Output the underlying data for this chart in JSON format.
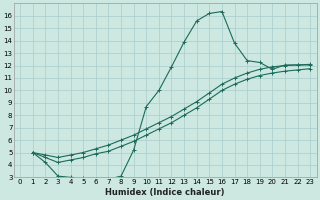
{
  "xlabel": "Humidex (Indice chaleur)",
  "bg_color": "#cce8e0",
  "grid_color": "#aacccc",
  "line_color": "#1a6b5a",
  "xlim": [
    -0.5,
    23.5
  ],
  "ylim": [
    3,
    17
  ],
  "xticks": [
    0,
    1,
    2,
    3,
    4,
    5,
    6,
    7,
    8,
    9,
    10,
    11,
    12,
    13,
    14,
    15,
    16,
    17,
    18,
    19,
    20,
    21,
    22,
    23
  ],
  "yticks": [
    3,
    4,
    5,
    6,
    7,
    8,
    9,
    10,
    11,
    12,
    13,
    14,
    15,
    16
  ],
  "curve1_x": [
    1,
    2,
    3,
    4,
    5,
    6,
    7,
    8,
    9,
    10,
    11,
    12,
    13,
    14,
    15,
    16,
    17,
    18,
    19,
    20,
    21,
    22,
    23
  ],
  "curve1_y": [
    5.0,
    4.2,
    3.1,
    3.0,
    2.95,
    2.85,
    2.85,
    3.1,
    5.2,
    8.7,
    10.0,
    11.9,
    13.9,
    15.6,
    16.2,
    16.35,
    13.8,
    12.4,
    12.25,
    11.7,
    12.05,
    12.05,
    12.05
  ],
  "curve2_x": [
    1,
    2,
    3,
    4,
    5,
    6,
    7,
    8,
    9,
    10,
    11,
    12,
    13,
    14,
    15,
    16,
    17,
    18,
    19,
    20,
    21,
    22,
    23
  ],
  "curve2_y": [
    5.0,
    4.8,
    4.6,
    4.8,
    5.0,
    5.3,
    5.6,
    6.0,
    6.4,
    6.9,
    7.4,
    7.9,
    8.5,
    9.1,
    9.8,
    10.5,
    11.0,
    11.4,
    11.7,
    11.9,
    12.0,
    12.05,
    12.1
  ],
  "curve3_x": [
    1,
    2,
    3,
    4,
    5,
    6,
    7,
    8,
    9,
    10,
    11,
    12,
    13,
    14,
    15,
    16,
    17,
    18,
    19,
    20,
    21,
    22,
    23
  ],
  "curve3_y": [
    5.0,
    4.6,
    4.2,
    4.4,
    4.6,
    4.9,
    5.1,
    5.5,
    5.9,
    6.4,
    6.9,
    7.4,
    8.0,
    8.6,
    9.3,
    10.0,
    10.5,
    10.9,
    11.2,
    11.4,
    11.55,
    11.65,
    11.75
  ]
}
